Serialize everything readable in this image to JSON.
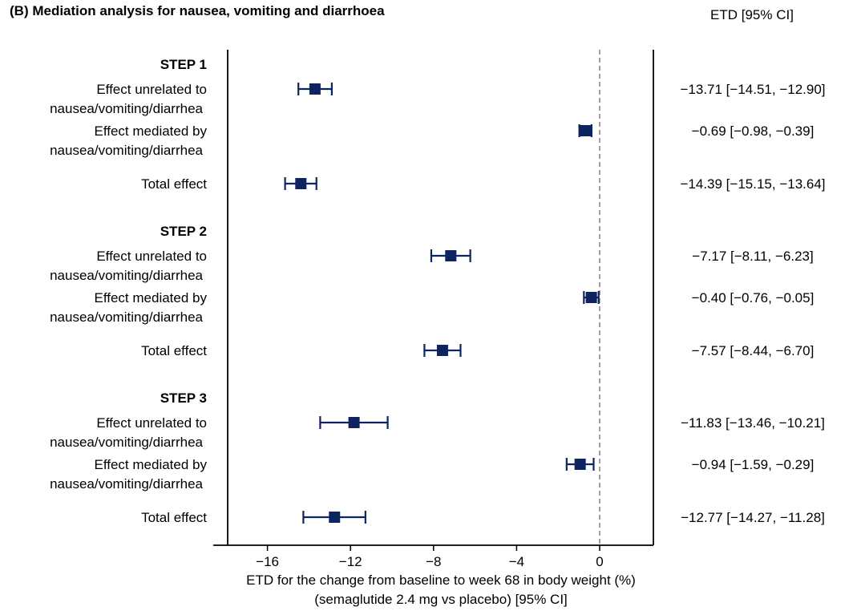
{
  "title": "(B) Mediation analysis for nausea, vomiting and diarrhoea",
  "ci_header": "ETD [95% CI]",
  "x_axis_label_line1": "ETD for the change from baseline to week 68 in body weight (%)",
  "x_axis_label_line2": "(semaglutide 2.4 mg vs placebo) [95% CI]",
  "marker_color": "#0d2461",
  "reference_line_color": "#888888",
  "chart_data": {
    "type": "scatter",
    "subtype": "forest-plot",
    "xlim": [
      -18,
      1.5
    ],
    "x_ticks": [
      -16,
      -12,
      -8,
      -4,
      0
    ],
    "x_tick_labels": [
      "−16",
      "−12",
      "−8",
      "−4",
      "0"
    ],
    "reference_line": 0,
    "groups": [
      {
        "name": "STEP 1",
        "rows": [
          {
            "label": [
              "Effect unrelated to",
              "nausea/vomiting/diarrhea"
            ],
            "estimate": -13.71,
            "lower": -14.51,
            "upper": -12.9,
            "ci_text": "−13.71 [−14.51, −12.90]"
          },
          {
            "label": [
              "Effect mediated by",
              "nausea/vomiting/diarrhea"
            ],
            "estimate": -0.69,
            "lower": -0.98,
            "upper": -0.39,
            "ci_text": "−0.69 [−0.98, −0.39]"
          },
          {
            "label": [
              "Total effect"
            ],
            "estimate": -14.39,
            "lower": -15.15,
            "upper": -13.64,
            "ci_text": "−14.39 [−15.15, −13.64]"
          }
        ]
      },
      {
        "name": "STEP 2",
        "rows": [
          {
            "label": [
              "Effect unrelated to",
              "nausea/vomiting/diarrhea"
            ],
            "estimate": -7.17,
            "lower": -8.11,
            "upper": -6.23,
            "ci_text": "−7.17 [−8.11, −6.23]"
          },
          {
            "label": [
              "Effect mediated by",
              "nausea/vomiting/diarrhea"
            ],
            "estimate": -0.4,
            "lower": -0.76,
            "upper": -0.05,
            "ci_text": "−0.40 [−0.76, −0.05]"
          },
          {
            "label": [
              "Total effect"
            ],
            "estimate": -7.57,
            "lower": -8.44,
            "upper": -6.7,
            "ci_text": "−7.57 [−8.44, −6.70]"
          }
        ]
      },
      {
        "name": "STEP 3",
        "rows": [
          {
            "label": [
              "Effect unrelated to",
              "nausea/vomiting/diarrhea"
            ],
            "estimate": -11.83,
            "lower": -13.46,
            "upper": -10.21,
            "ci_text": "−11.83 [−13.46, −10.21]"
          },
          {
            "label": [
              "Effect mediated by",
              "nausea/vomiting/diarrhea"
            ],
            "estimate": -0.94,
            "lower": -1.59,
            "upper": -0.29,
            "ci_text": "−0.94 [−1.59, −0.29]"
          },
          {
            "label": [
              "Total effect"
            ],
            "estimate": -12.77,
            "lower": -14.27,
            "upper": -11.28,
            "ci_text": "−12.77 [−14.27, −11.28]"
          }
        ]
      }
    ]
  }
}
